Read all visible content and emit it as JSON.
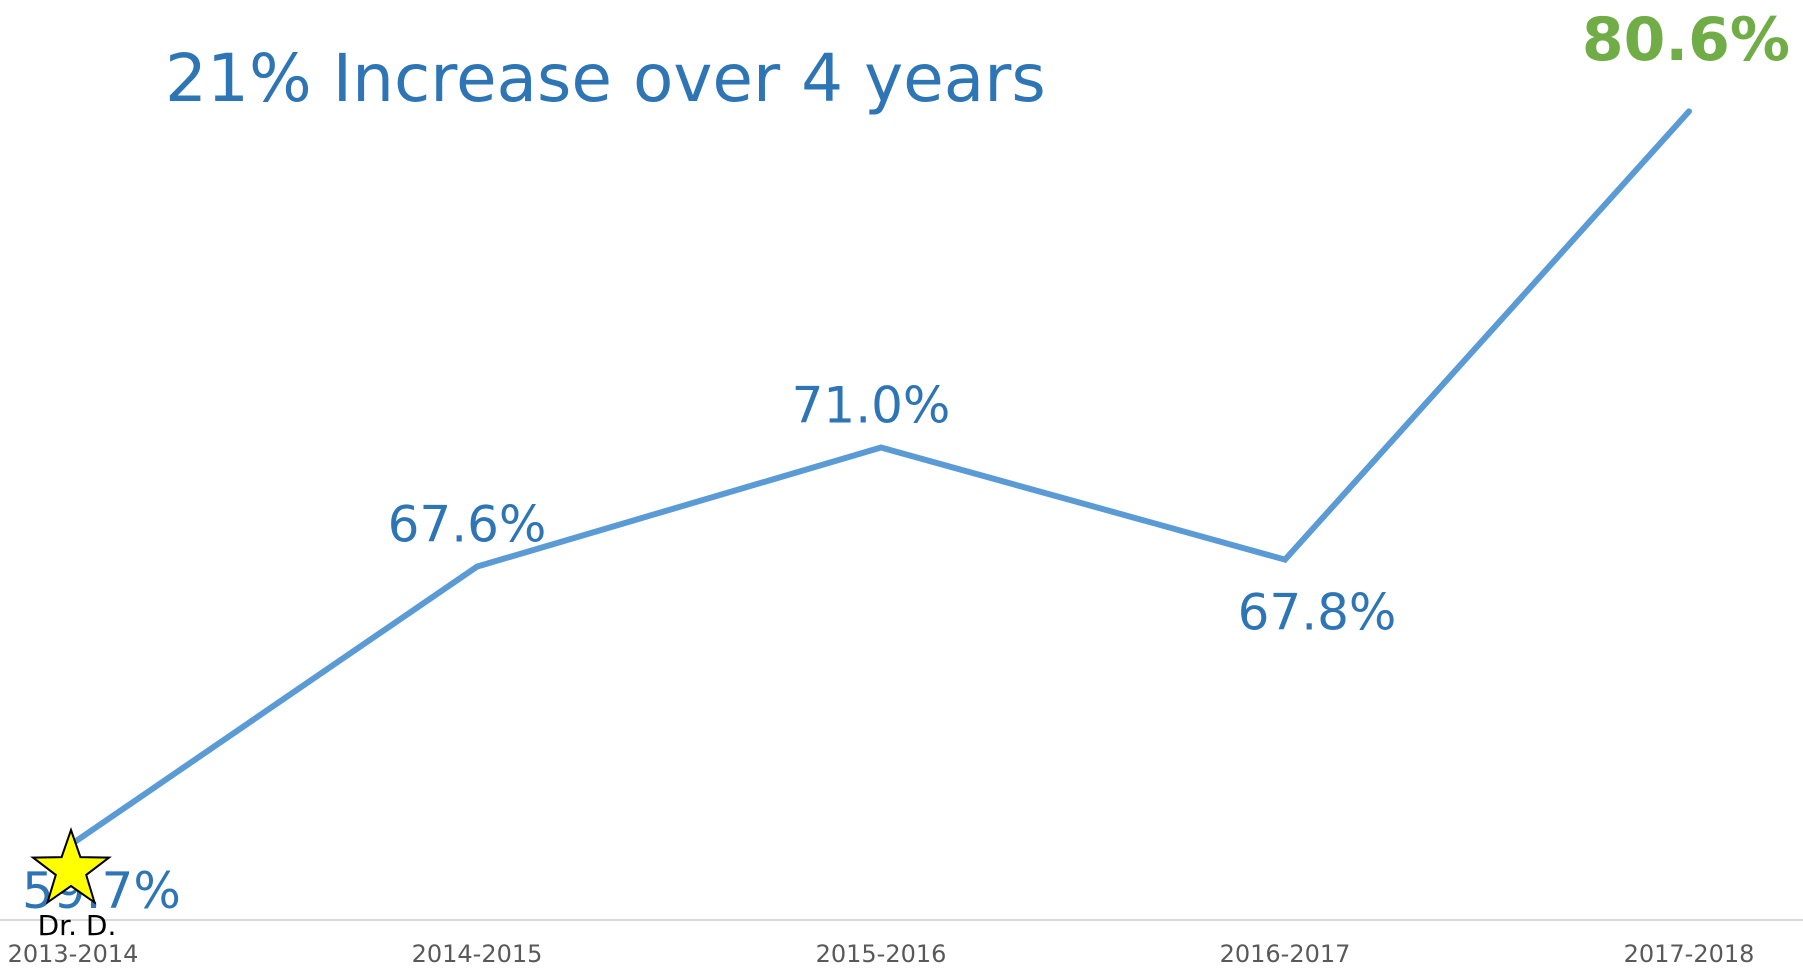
{
  "chart_data": {
    "type": "line",
    "title": "21% Increase over 4 years",
    "xlabel": "",
    "ylabel": "",
    "categories": [
      "2013-2014",
      "2014-2015",
      "2015-2016",
      "2016-2017",
      "2017-2018"
    ],
    "series": [
      {
        "values": [
          59.7,
          67.6,
          71.0,
          67.8,
          80.6
        ],
        "labels": [
          "59.7%",
          "67.6%",
          "71.0%",
          "67.8%",
          "80.6%"
        ]
      }
    ],
    "ylim": [
      56,
      82
    ],
    "grid": false,
    "legend": "none",
    "annotations": [
      {
        "category": "2013-2014",
        "icon": "star-icon",
        "text": "Dr. D."
      }
    ]
  },
  "colors": {
    "line": "#5b9bd5",
    "title": "#2e75b6",
    "label": "#2e75b6",
    "highlight_label": "#70ad47",
    "axis": "#d9d9d9",
    "tick": "#595959",
    "star_fill": "#ffff00",
    "star_stroke": "#000000"
  }
}
